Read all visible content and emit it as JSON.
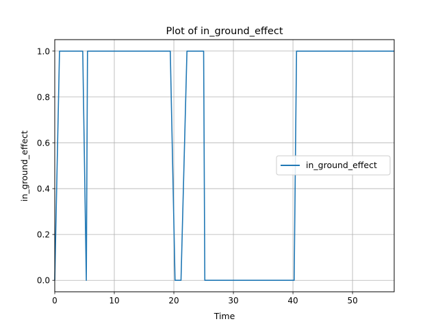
{
  "chart_data": {
    "type": "line",
    "title": "Plot of in_ground_effect",
    "xlabel": "Time",
    "ylabel": "in_ground_effect",
    "xlim": [
      0,
      57
    ],
    "ylim": [
      -0.05,
      1.05
    ],
    "xticks": [
      0,
      10,
      20,
      30,
      40,
      50
    ],
    "yticks": [
      0.0,
      0.2,
      0.4,
      0.6,
      0.8,
      1.0
    ],
    "xtick_labels": [
      "0",
      "10",
      "20",
      "30",
      "40",
      "50"
    ],
    "ytick_labels": [
      "0.0",
      "0.2",
      "0.4",
      "0.6",
      "0.8",
      "1.0"
    ],
    "grid": true,
    "legend_position": "center-right",
    "series": [
      {
        "name": "in_ground_effect",
        "color": "#1f77b4",
        "x": [
          0,
          0.8,
          4.7,
          5.3,
          5.5,
          19.4,
          20.2,
          21.2,
          22.2,
          25.0,
          25.2,
          40.2,
          40.6,
          57
        ],
        "y": [
          0,
          1,
          1,
          0,
          1,
          1,
          0,
          0,
          1,
          1,
          0,
          0,
          1,
          1
        ]
      }
    ]
  }
}
